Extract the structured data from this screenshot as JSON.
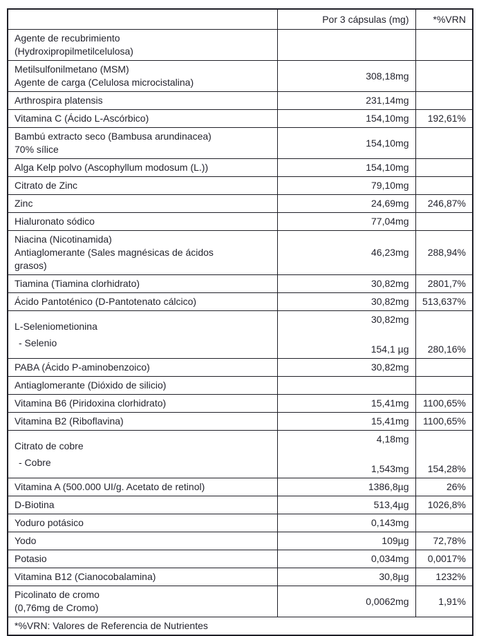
{
  "page": {
    "background_color": "#ffffff",
    "text_color": "#23232d",
    "border_color": "#1e1e26"
  },
  "table": {
    "header": {
      "col_ingredient": "",
      "col_amount": "Por 3 cápsulas (mg)",
      "col_vrn": "*%VRN"
    },
    "rows": [
      {
        "name_lines": [
          "Agente de recubrimiento",
          "(Hydroxipropilmetilcelulosa)"
        ],
        "amount": "",
        "vrn": ""
      },
      {
        "name_lines": [
          "Metilsulfonilmetano (MSM)",
          "Agente de carga (Celulosa microcistalina)"
        ],
        "amount": "308,18mg",
        "vrn": ""
      },
      {
        "name_lines": [
          "Arthrospira platensis"
        ],
        "amount": "231,14mg",
        "vrn": ""
      },
      {
        "name_lines": [
          "Vitamina C (Ácido L-Ascórbico)"
        ],
        "amount": "154,10mg",
        "vrn": "192,61%"
      },
      {
        "name_lines": [
          "Bambú extracto seco (Bambusa arundinacea)",
          "70% sílice"
        ],
        "amount": "154,10mg",
        "vrn": ""
      },
      {
        "name_lines": [
          "Alga Kelp polvo (Ascophyllum modosum (L.))"
        ],
        "amount": "154,10mg",
        "vrn": ""
      },
      {
        "name_lines": [
          "Citrato de Zinc"
        ],
        "amount": "79,10mg",
        "vrn": ""
      },
      {
        "name_lines": [
          "Zinc"
        ],
        "amount": "24,69mg",
        "vrn": "246,87%"
      },
      {
        "name_lines": [
          "Hialuronato sódico"
        ],
        "amount": "77,04mg",
        "vrn": ""
      },
      {
        "name_lines": [
          "Niacina (Nicotinamida)",
          "Antiaglomerante (Sales magnésicas de ácidos",
          "grasos)"
        ],
        "amount": "46,23mg",
        "vrn": "288,94%"
      },
      {
        "name_lines": [
          "Tiamina (Tiamina clorhidrato)"
        ],
        "amount": "30,82mg",
        "vrn": "2801,7%"
      },
      {
        "name_lines": [
          "Ácido Pantoténico (D-Pantotenato cálcico)"
        ],
        "amount": "30,82mg",
        "vrn": "513,637%"
      },
      {
        "dual": true,
        "name_lines": [
          "L-Seleniometionina",
          "- Selenio"
        ],
        "amount_top": "30,82mg",
        "amount_bottom": "154,1 µg",
        "vrn": "280,16%"
      },
      {
        "name_lines": [
          "PABA (Ácido P-aminobenzoico)"
        ],
        "amount": "30,82mg",
        "vrn": ""
      },
      {
        "name_lines": [
          "Antiaglomerante (Dióxido de silicio)"
        ],
        "amount": "",
        "vrn": ""
      },
      {
        "name_lines": [
          "Vitamina B6 (Piridoxina clorhidrato)"
        ],
        "amount": "15,41mg",
        "vrn": "1100,65%"
      },
      {
        "name_lines": [
          "Vitamina B2 (Riboflavina)"
        ],
        "amount": "15,41mg",
        "vrn": "1100,65%"
      },
      {
        "dual": true,
        "name_lines": [
          "Citrato de cobre",
          "- Cobre"
        ],
        "amount_top": "4,18mg",
        "amount_bottom": "1,543mg",
        "vrn": "154,28%"
      },
      {
        "name_lines": [
          "Vitamina A (500.000 UI/g. Acetato de retinol)"
        ],
        "amount": "1386,8µg",
        "vrn": "26%"
      },
      {
        "name_lines": [
          "D-Biotina"
        ],
        "amount": "513,4µg",
        "vrn": "1026,8%"
      },
      {
        "name_lines": [
          "Yoduro potásico"
        ],
        "amount": "0,143mg",
        "vrn": ""
      },
      {
        "name_lines": [
          "Yodo"
        ],
        "amount": "109µg",
        "vrn": "72,78%"
      },
      {
        "name_lines": [
          "Potasio"
        ],
        "amount": "0,034mg",
        "vrn": "0,0017%"
      },
      {
        "name_lines": [
          "Vitamina B12 (Cianocobalamina)"
        ],
        "amount": "30,8µg",
        "vrn": "1232%"
      },
      {
        "name_lines": [
          "Picolinato de cromo",
          "(0,76mg de Cromo)"
        ],
        "amount": "0,0062mg",
        "vrn": "1,91%"
      }
    ],
    "footnote": "*%VRN: Valores de Referencia de Nutrientes"
  }
}
